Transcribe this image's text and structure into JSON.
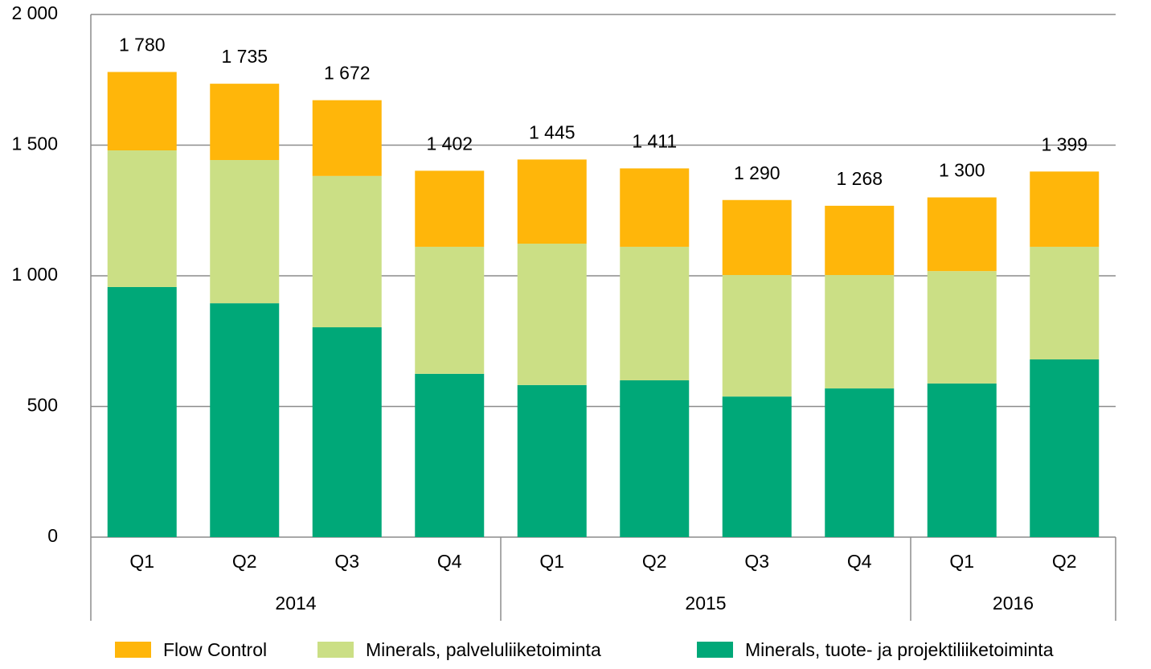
{
  "chart_data": {
    "type": "stacked_bar",
    "categories": [
      "Q1",
      "Q2",
      "Q3",
      "Q4",
      "Q1",
      "Q2",
      "Q3",
      "Q4",
      "Q1",
      "Q2"
    ],
    "groups": [
      {
        "label": "2014",
        "count": 4
      },
      {
        "label": "2015",
        "count": 4
      },
      {
        "label": "2016",
        "count": 2
      }
    ],
    "series": [
      {
        "name": "Minerals, tuote- ja projektiliiketoiminta",
        "color": "#00a878",
        "values": [
          957,
          895,
          803,
          625,
          582,
          600,
          538,
          569,
          588,
          680
        ]
      },
      {
        "name": "Minerals, palveluliiketoiminta",
        "color": "#cbdf85",
        "values": [
          523,
          548,
          579,
          486,
          541,
          511,
          465,
          434,
          430,
          431
        ]
      },
      {
        "name": "Flow Control",
        "color": "#ffb60a",
        "values": [
          300,
          292,
          290,
          291,
          322,
          300,
          287,
          265,
          282,
          288
        ]
      }
    ],
    "totals": [
      1780,
      1735,
      1672,
      1402,
      1445,
      1411,
      1290,
      1268,
      1300,
      1399
    ],
    "total_labels": [
      "1 780",
      "1 735",
      "1 672",
      "1 402",
      "1 445",
      "1 411",
      "1 290",
      "1 268",
      "1 300",
      "1 399"
    ],
    "ylim": [
      0,
      2000
    ],
    "yticks": [
      0,
      500,
      {
        "value": 1000,
        "label": "1 000"
      },
      {
        "value": 1500,
        "label": "1 500"
      },
      {
        "value": 2000,
        "label": "2 000"
      }
    ],
    "grid": true
  }
}
